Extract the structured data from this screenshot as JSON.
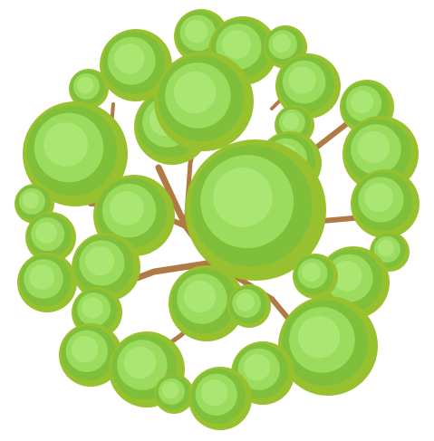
{
  "image": {
    "subject": "tree-top-view",
    "colors": {
      "background": "#ffffff",
      "branch": "#b07a44",
      "outer": "#98c12f",
      "mid": "#7fbf3a",
      "inner": "#9bdc5f",
      "core": "#abe673"
    }
  }
}
